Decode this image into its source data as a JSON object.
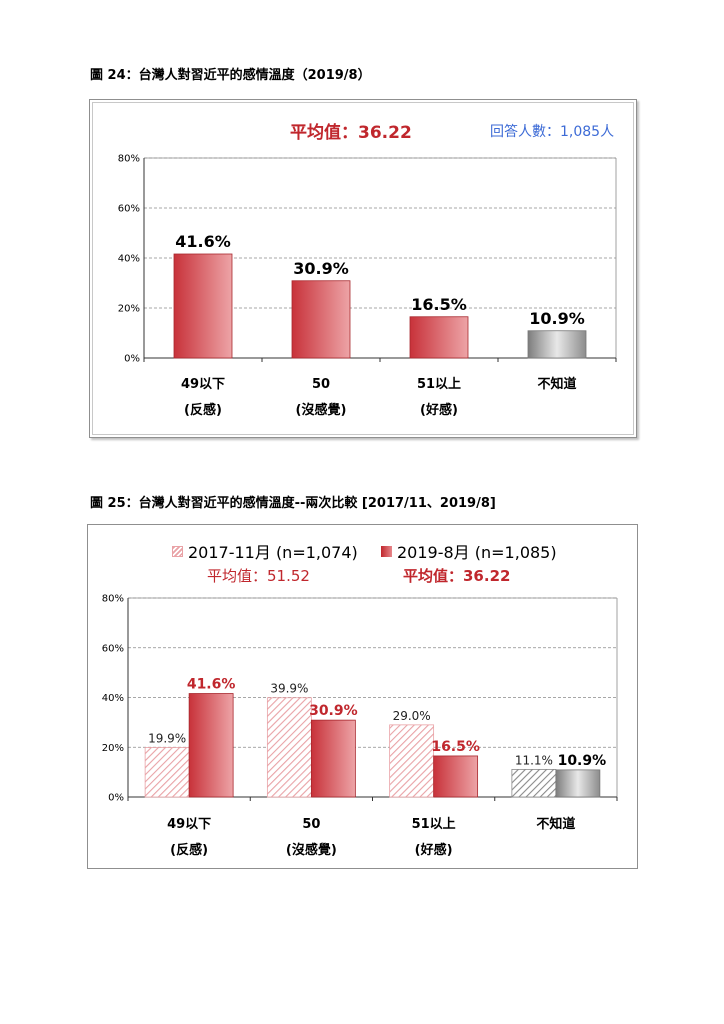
{
  "figure24": {
    "caption": "圖 24：台灣人對習近平的感情溫度（2019/8）",
    "average_label": "平均值：36.22",
    "respondents_label": "回答人數：1,085人"
  },
  "figure25": {
    "caption": "圖 25：台灣人對習近平的感情溫度--兩次比較 [2017/11、2019/8]",
    "legend": [
      "2017-11月 (n=1,074)",
      "2019-8月 (n=1,085)"
    ],
    "average_2017": "平均值：51.52",
    "average_2019": "平均值：36.22"
  },
  "colors": {
    "accent_red": "#c0272d",
    "dont_know_gray": "#9a9a9a",
    "respondents_blue": "#3d6bd6"
  },
  "chart_data": [
    {
      "type": "bar",
      "title": "",
      "categories": [
        [
          "49以下",
          "(反感)"
        ],
        [
          "50",
          "(沒感覺)"
        ],
        [
          "51以上",
          "(好感)"
        ],
        [
          "不知道"
        ]
      ],
      "values": [
        41.6,
        30.9,
        16.5,
        10.9
      ],
      "value_labels": [
        "41.6%",
        "30.9%",
        "16.5%",
        "10.9%"
      ],
      "ylim": [
        0,
        80
      ],
      "yticks": [
        "0%",
        "20%",
        "40%",
        "60%",
        "80%"
      ],
      "grid": true,
      "legend": "none"
    },
    {
      "type": "bar",
      "title": "",
      "categories": [
        [
          "49以下",
          "(反感)"
        ],
        [
          "50",
          "(沒感覺)"
        ],
        [
          "51以上",
          "(好感)"
        ],
        [
          "不知道"
        ]
      ],
      "series": [
        {
          "name": "2017-11月 (n=1,074)",
          "values": [
            19.9,
            39.9,
            29.0,
            11.1
          ],
          "value_labels": [
            "19.9%",
            "39.9%",
            "29.0%",
            "11.1%"
          ]
        },
        {
          "name": "2019-8月 (n=1,085)",
          "values": [
            41.6,
            30.9,
            16.5,
            10.9
          ],
          "value_labels": [
            "41.6%",
            "30.9%",
            "16.5%",
            "10.9%"
          ]
        }
      ],
      "ylim": [
        0,
        80
      ],
      "yticks": [
        "0%",
        "20%",
        "40%",
        "60%",
        "80%"
      ],
      "grid": true,
      "legend": "top-center"
    }
  ]
}
